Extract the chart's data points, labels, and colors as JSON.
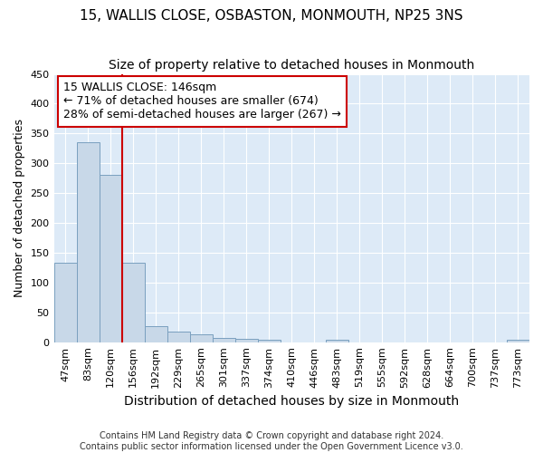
{
  "title": "15, WALLIS CLOSE, OSBASTON, MONMOUTH, NP25 3NS",
  "subtitle": "Size of property relative to detached houses in Monmouth",
  "xlabel": "Distribution of detached houses by size in Monmouth",
  "ylabel": "Number of detached properties",
  "footer_line1": "Contains HM Land Registry data © Crown copyright and database right 2024.",
  "footer_line2": "Contains public sector information licensed under the Open Government Licence v3.0.",
  "categories": [
    "47sqm",
    "83sqm",
    "120sqm",
    "156sqm",
    "192sqm",
    "229sqm",
    "265sqm",
    "301sqm",
    "337sqm",
    "374sqm",
    "410sqm",
    "446sqm",
    "483sqm",
    "519sqm",
    "555sqm",
    "592sqm",
    "628sqm",
    "664sqm",
    "700sqm",
    "737sqm",
    "773sqm"
  ],
  "values": [
    134,
    335,
    281,
    134,
    27,
    17,
    13,
    7,
    5,
    4,
    0,
    0,
    4,
    0,
    0,
    0,
    0,
    0,
    0,
    0,
    4
  ],
  "bar_color": "#c8d8e8",
  "bar_edge_color": "#7aa0bf",
  "vline_x": 2.5,
  "vline_color": "#cc0000",
  "annotation_line1": "15 WALLIS CLOSE: 146sqm",
  "annotation_line2": "← 71% of detached houses are smaller (674)",
  "annotation_line3": "28% of semi-detached houses are larger (267) →",
  "annotation_box_facecolor": "white",
  "annotation_box_edgecolor": "#cc0000",
  "ylim": [
    0,
    450
  ],
  "yticks": [
    0,
    50,
    100,
    150,
    200,
    250,
    300,
    350,
    400,
    450
  ],
  "title_fontsize": 11,
  "subtitle_fontsize": 10,
  "xlabel_fontsize": 10,
  "ylabel_fontsize": 9,
  "tick_fontsize": 8,
  "annotation_fontsize": 9,
  "footer_fontsize": 7,
  "background_color": "#ddeaf7",
  "grid_color": "white"
}
